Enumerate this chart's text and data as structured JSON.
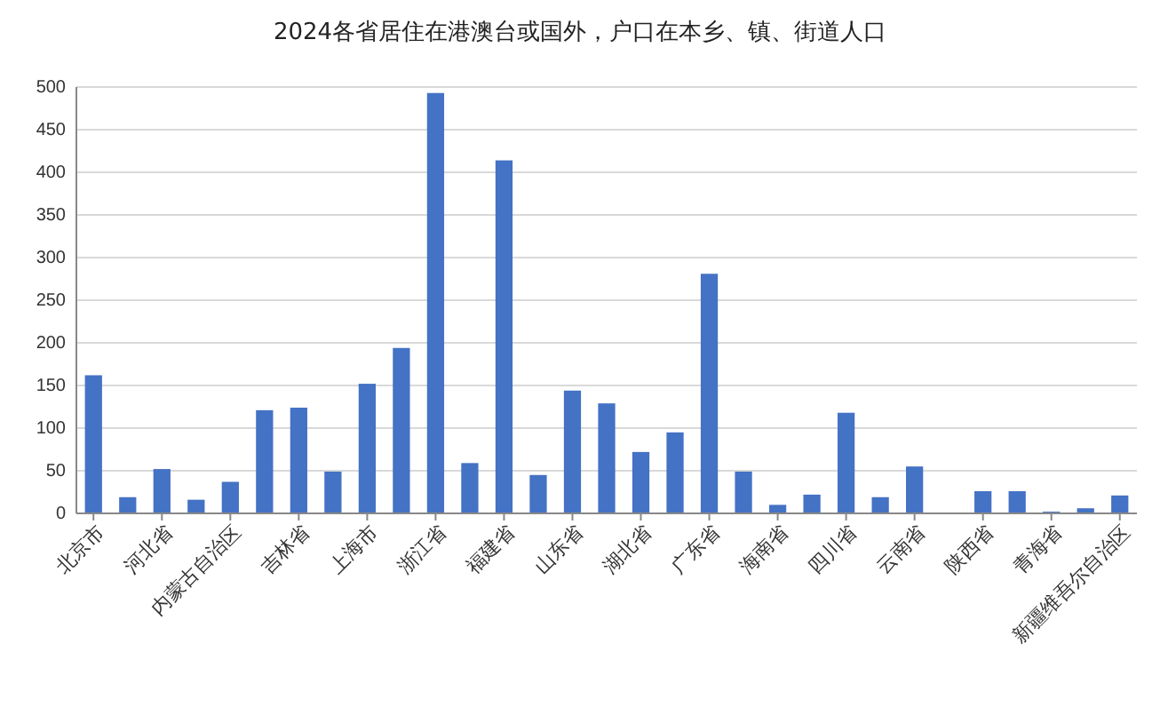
{
  "chart_data": {
    "type": "bar",
    "title": "2024各省居住在港澳台或国外，户口在本乡、镇、街道人口",
    "categories": [
      "北京市",
      null,
      "河北省",
      null,
      "内蒙古自治区",
      null,
      "吉林省",
      null,
      "上海市",
      null,
      "浙江省",
      null,
      "福建省",
      null,
      "山东省",
      null,
      "湖北省",
      null,
      "广东省",
      null,
      "海南省",
      null,
      "四川省",
      null,
      "云南省",
      null,
      "陕西省",
      null,
      "青海省",
      null,
      "新疆维吾尔自治区"
    ],
    "values": [
      162,
      19,
      52,
      16,
      37,
      121,
      124,
      49,
      152,
      194,
      493,
      59,
      414,
      45,
      144,
      129,
      72,
      95,
      281,
      49,
      10,
      22,
      118,
      19,
      55,
      0,
      26,
      26,
      2,
      6,
      21
    ],
    "color": "#4472c4",
    "ylim": [
      0,
      500
    ],
    "yticks": [
      0,
      50,
      100,
      150,
      200,
      250,
      300,
      350,
      400,
      450,
      500
    ],
    "grid": "y"
  }
}
